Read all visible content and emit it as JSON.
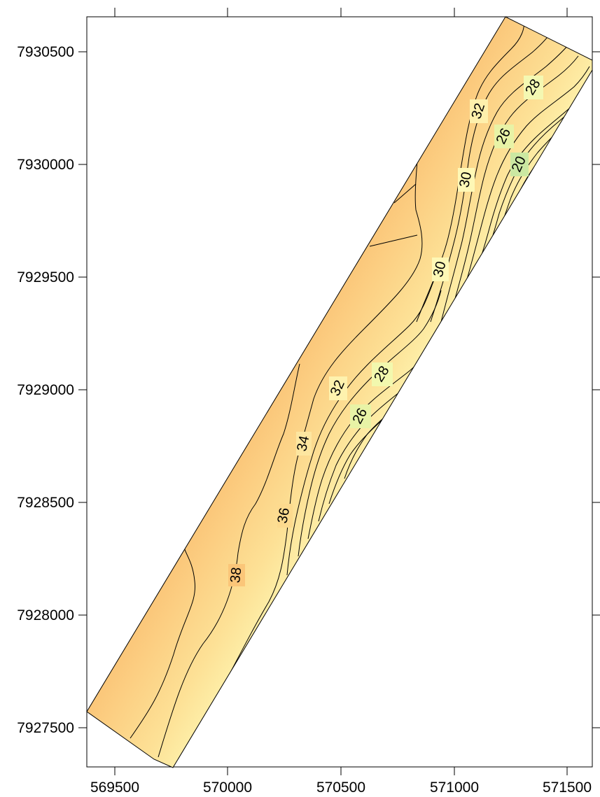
{
  "axes": {
    "x_ticks": [
      "569500",
      "570000",
      "570500",
      "571000",
      "571500"
    ],
    "y_ticks": [
      "7930500",
      "7930000",
      "7929500",
      "7929000",
      "7928500",
      "7928000",
      "7927500"
    ]
  },
  "contours": {
    "labels": [
      "38",
      "36",
      "34",
      "32",
      "28",
      "26",
      "32",
      "30",
      "30",
      "32",
      "28",
      "26",
      "20"
    ]
  },
  "colors": {
    "high": "#F8A15A",
    "mid_high": "#FBC679",
    "mid": "#FDE196",
    "mid_low": "#FEFBB8",
    "low": "#E3F1A3",
    "lowest": "#B3DEA0",
    "contour_line": "#000000"
  }
}
